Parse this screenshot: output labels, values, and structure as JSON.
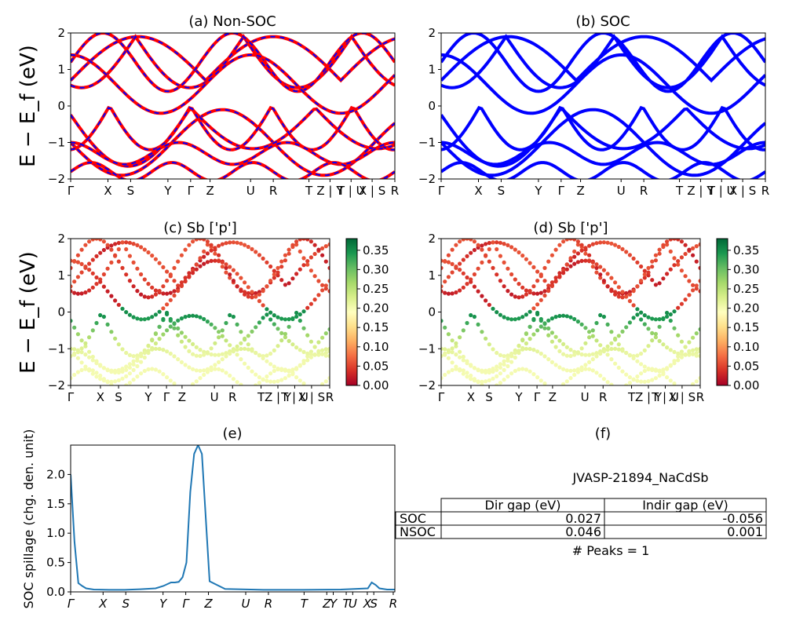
{
  "ylabel_main": "E − E_f (eV)",
  "chart_data": [
    {
      "id": "a",
      "type": "line",
      "title": "(a) Non-SOC",
      "ylim": [
        -2,
        2
      ],
      "yticks": [
        "2",
        "1",
        "0",
        "−1",
        "−2"
      ],
      "kpath": [
        "Γ",
        "X",
        "S",
        "Y",
        "Γ",
        "Z",
        "U",
        "R",
        "T",
        "Z | Y",
        "T | U",
        "X | S",
        "R"
      ],
      "series": [
        {
          "color": "#ff0000",
          "style": "solid"
        },
        {
          "color": "#0000ff",
          "style": "dashed"
        }
      ],
      "bands_at_gamma_ev": [
        -1.0,
        -0.05,
        0.0,
        0.7,
        1.9
      ]
    },
    {
      "id": "b",
      "type": "line",
      "title": "(b) SOC",
      "ylim": [
        -2,
        2
      ],
      "yticks": [
        "2",
        "1",
        "0",
        "−1",
        "−2"
      ],
      "kpath": [
        "Γ",
        "X",
        "S",
        "Y",
        "Γ",
        "Z",
        "U",
        "R",
        "T",
        "Z | Y",
        "T | U",
        "X | S",
        "R"
      ],
      "series": [
        {
          "color": "#0000ff",
          "style": "solid"
        }
      ],
      "bands_at_gamma_ev": [
        -1.0,
        -0.05,
        0.0,
        0.6,
        1.9
      ]
    },
    {
      "id": "c",
      "type": "scatter",
      "title": "(c)  Sb ['p']",
      "ylim": [
        -2,
        2
      ],
      "yticks": [
        "2",
        "1",
        "0",
        "−1",
        "−2"
      ],
      "kpath": [
        "Γ",
        "X",
        "S",
        "Y",
        "Γ",
        "Z",
        "U",
        "R",
        "T",
        "Z | Y",
        "T | U",
        "X | S",
        "R"
      ],
      "colorbar": {
        "min": 0.0,
        "max": 0.38,
        "cmap": "RdYlGn",
        "ticks": [
          "0.35",
          "0.30",
          "0.25",
          "0.20",
          "0.15",
          "0.10",
          "0.05",
          "0.00"
        ]
      }
    },
    {
      "id": "d",
      "type": "scatter",
      "title": "(d) Sb ['p']",
      "ylim": [
        -2,
        2
      ],
      "yticks": [
        "2",
        "1",
        "0",
        "−1",
        "−2"
      ],
      "kpath": [
        "Γ",
        "X",
        "S",
        "Y",
        "Γ",
        "Z",
        "U",
        "R",
        "T",
        "Z | Y",
        "T | U",
        "X | S",
        "R"
      ],
      "colorbar": {
        "min": 0.0,
        "max": 0.38,
        "cmap": "RdYlGn",
        "ticks": [
          "0.35",
          "0.30",
          "0.25",
          "0.20",
          "0.15",
          "0.10",
          "0.05",
          "0.00"
        ]
      }
    },
    {
      "id": "e",
      "type": "line",
      "title": "(e)",
      "ylabel": "SOC spillage (chg. den. unit)",
      "ylim": [
        0,
        2.5
      ],
      "yticks": [
        "2.0",
        "1.5",
        "1.0",
        "0.5",
        "0.0"
      ],
      "xticks": [
        "Γ",
        "X",
        "S",
        "Y",
        "Γ",
        "Z",
        "U",
        "R",
        "T",
        "Z",
        "Y",
        "T",
        "U",
        "X",
        "S",
        "R"
      ],
      "x": [
        0.0,
        0.5,
        1,
        1.5,
        2,
        3,
        5,
        7,
        9,
        11,
        12,
        13,
        13.5,
        14,
        14.5,
        15.0,
        15.5,
        16,
        16.5,
        17,
        18,
        20,
        25,
        30,
        35,
        38.5,
        39,
        39.5,
        40,
        41,
        42
      ],
      "values": [
        2.0,
        0.85,
        0.15,
        0.1,
        0.06,
        0.04,
        0.035,
        0.035,
        0.045,
        0.06,
        0.1,
        0.16,
        0.16,
        0.17,
        0.25,
        0.5,
        1.7,
        2.35,
        2.5,
        2.35,
        0.18,
        0.05,
        0.035,
        0.035,
        0.04,
        0.06,
        0.16,
        0.12,
        0.06,
        0.04,
        0.04
      ]
    }
  ],
  "panel_f": {
    "title": "(f)",
    "material": "JVASP-21894_NaCdSb",
    "headers": [
      "Dir gap (eV)",
      "Indir gap (eV)"
    ],
    "rows": [
      {
        "label": "SOC",
        "dir": "0.027",
        "indir": "-0.056"
      },
      {
        "label": "NSOC",
        "dir": "0.046",
        "indir": "0.001"
      }
    ],
    "peaks": "# Peaks = 1"
  },
  "colors": {
    "line_e": "#1f77b4",
    "soc": "#0000ff",
    "nonsoc": "#ff0000"
  }
}
